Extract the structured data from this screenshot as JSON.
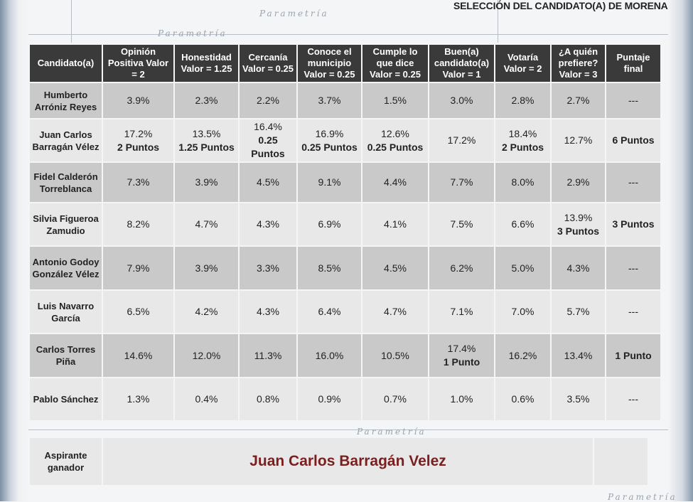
{
  "title": "SELECCIÓN DEL CANDIDATO(A) DE MORENA",
  "watermark": "Parametría",
  "chart_data": {
    "type": "table",
    "columns": [
      "Candidato(a)",
      "Opinión Positiva Valor = 2",
      "Honestidad Valor = 1.25",
      "Cercanía Valor = 0.25",
      "Conoce el municipio Valor = 0.25",
      "Cumple lo que dice Valor = 0.25",
      "Buen(a) candidato(a) Valor = 1",
      "Votaría Valor = 2",
      "¿A quién prefiere? Valor = 3",
      "Puntaje final"
    ],
    "rows": [
      {
        "name": "Humberto Arróniz Reyes",
        "cells": [
          {
            "v": "3.9%"
          },
          {
            "v": "2.3%"
          },
          {
            "v": "2.2%"
          },
          {
            "v": "3.7%"
          },
          {
            "v": "1.5%"
          },
          {
            "v": "3.0%"
          },
          {
            "v": "2.8%"
          },
          {
            "v": "2.7%"
          },
          {
            "v": "---"
          }
        ]
      },
      {
        "name": "Juan Carlos Barragán Vélez",
        "cells": [
          {
            "v": "17.2%",
            "p": "2 Puntos"
          },
          {
            "v": "13.5%",
            "p": "1.25 Puntos"
          },
          {
            "v": "16.4%",
            "p": "0.25 Puntos"
          },
          {
            "v": "16.9%",
            "p": "0.25 Puntos"
          },
          {
            "v": "12.6%",
            "p": "0.25 Puntos"
          },
          {
            "v": "17.2%"
          },
          {
            "v": "18.4%",
            "p": "2 Puntos"
          },
          {
            "v": "12.7%"
          },
          {
            "p": "6 Puntos"
          }
        ]
      },
      {
        "name": "Fidel Calderón Torreblanca",
        "cells": [
          {
            "v": "7.3%"
          },
          {
            "v": "3.9%"
          },
          {
            "v": "4.5%"
          },
          {
            "v": "9.1%"
          },
          {
            "v": "4.4%"
          },
          {
            "v": "7.7%"
          },
          {
            "v": "8.0%"
          },
          {
            "v": "2.9%"
          },
          {
            "v": "---"
          }
        ]
      },
      {
        "name": "Silvia Figueroa Zamudio",
        "cells": [
          {
            "v": "8.2%"
          },
          {
            "v": "4.7%"
          },
          {
            "v": "4.3%"
          },
          {
            "v": "6.9%"
          },
          {
            "v": "4.1%"
          },
          {
            "v": "7.5%"
          },
          {
            "v": "6.6%"
          },
          {
            "v": "13.9%",
            "p": "3 Puntos"
          },
          {
            "p": "3 Puntos"
          }
        ]
      },
      {
        "name": "Antonio Godoy González Vélez",
        "cells": [
          {
            "v": "7.9%"
          },
          {
            "v": "3.9%"
          },
          {
            "v": "3.3%"
          },
          {
            "v": "8.5%"
          },
          {
            "v": "4.5%"
          },
          {
            "v": "6.2%"
          },
          {
            "v": "5.0%"
          },
          {
            "v": "4.3%"
          },
          {
            "v": "---"
          }
        ]
      },
      {
        "name": "Luis Navarro García",
        "cells": [
          {
            "v": "6.5%"
          },
          {
            "v": "4.2%"
          },
          {
            "v": "4.3%"
          },
          {
            "v": "6.4%"
          },
          {
            "v": "4.7%"
          },
          {
            "v": "7.1%"
          },
          {
            "v": "7.0%"
          },
          {
            "v": "5.7%"
          },
          {
            "v": "---"
          }
        ]
      },
      {
        "name": "Carlos Torres Piña",
        "cells": [
          {
            "v": "14.6%"
          },
          {
            "v": "12.0%"
          },
          {
            "v": "11.3%"
          },
          {
            "v": "16.0%"
          },
          {
            "v": "10.5%"
          },
          {
            "v": "17.4%",
            "p": "1 Punto"
          },
          {
            "v": "16.2%"
          },
          {
            "v": "13.4%"
          },
          {
            "p": "1 Punto"
          }
        ]
      },
      {
        "name": "Pablo Sánchez",
        "cells": [
          {
            "v": "1.3%"
          },
          {
            "v": "0.4%"
          },
          {
            "v": "0.8%"
          },
          {
            "v": "0.9%"
          },
          {
            "v": "0.7%"
          },
          {
            "v": "1.0%"
          },
          {
            "v": "0.6%"
          },
          {
            "v": "3.5%"
          },
          {
            "v": "---"
          }
        ]
      }
    ],
    "winner_label": "Aspirante ganador",
    "winner": "Juan Carlos Barragán Velez"
  },
  "colors": {
    "header": "#3a3a3a",
    "row_dark": "#c9c9c9",
    "row_light": "#e8e8e8",
    "winner": "#7a1f1f"
  }
}
